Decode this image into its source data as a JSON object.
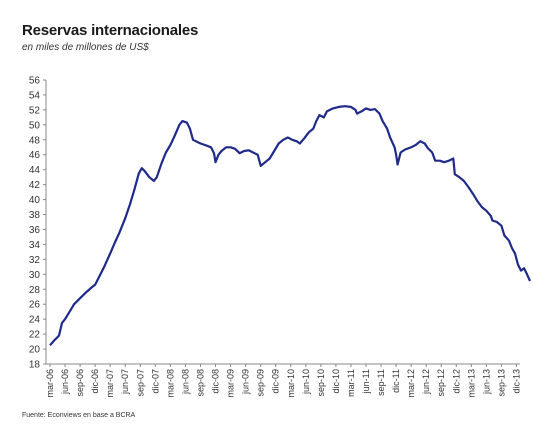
{
  "chart_data": {
    "type": "line",
    "title": "Reservas internacionales",
    "subtitle": "en miles de millones de US$",
    "source": "Fuente: Econviews en base a BCRA",
    "ylim": [
      18,
      56
    ],
    "yticks": [
      18,
      20,
      22,
      24,
      26,
      28,
      30,
      32,
      34,
      36,
      38,
      40,
      42,
      44,
      46,
      48,
      50,
      52,
      54,
      56
    ],
    "categories": [
      "mar-06",
      "jun-06",
      "sep-06",
      "dic-06",
      "mar-07",
      "jun-07",
      "sep-07",
      "dic-07",
      "mar-08",
      "jun-08",
      "sep-08",
      "dic-08",
      "mar-09",
      "jun-09",
      "sep-09",
      "dic-09",
      "mar-10",
      "jun-10",
      "sep-10",
      "dic-10",
      "mar-11",
      "jun-11",
      "sep-11",
      "dic-11",
      "mar-12",
      "jun-12",
      "sep-12",
      "dic-12",
      "mar-13",
      "jun-13",
      "sep-13",
      "dic-13"
    ],
    "grid": false,
    "line_color": "#1f2a8a",
    "series": [
      {
        "values": [
          [
            0,
            20.5
          ],
          [
            0.3,
            21.2
          ],
          [
            0.6,
            21.8
          ],
          [
            0.8,
            23.5
          ],
          [
            1.0,
            24.0
          ],
          [
            1.3,
            25.0
          ],
          [
            1.6,
            26.0
          ],
          [
            2.0,
            26.8
          ],
          [
            2.4,
            27.6
          ],
          [
            2.8,
            28.3
          ],
          [
            3.0,
            28.6
          ],
          [
            3.3,
            29.8
          ],
          [
            3.6,
            31.0
          ],
          [
            4.0,
            32.8
          ],
          [
            4.3,
            34.2
          ],
          [
            4.6,
            35.5
          ],
          [
            5.0,
            37.5
          ],
          [
            5.3,
            39.3
          ],
          [
            5.6,
            41.3
          ],
          [
            5.9,
            43.5
          ],
          [
            6.1,
            44.2
          ],
          [
            6.3,
            43.8
          ],
          [
            6.6,
            43.0
          ],
          [
            6.9,
            42.5
          ],
          [
            7.1,
            43.0
          ],
          [
            7.4,
            44.8
          ],
          [
            7.7,
            46.3
          ],
          [
            8.0,
            47.3
          ],
          [
            8.3,
            48.6
          ],
          [
            8.6,
            50.0
          ],
          [
            8.8,
            50.5
          ],
          [
            9.1,
            50.3
          ],
          [
            9.3,
            49.5
          ],
          [
            9.5,
            48.0
          ],
          [
            9.7,
            47.8
          ],
          [
            10.0,
            47.5
          ],
          [
            10.3,
            47.3
          ],
          [
            10.7,
            47.0
          ],
          [
            10.9,
            46.2
          ],
          [
            11.0,
            45.0
          ],
          [
            11.2,
            46.0
          ],
          [
            11.4,
            46.5
          ],
          [
            11.7,
            47.0
          ],
          [
            12.0,
            47.0
          ],
          [
            12.3,
            46.8
          ],
          [
            12.6,
            46.2
          ],
          [
            12.9,
            46.5
          ],
          [
            13.2,
            46.6
          ],
          [
            13.5,
            46.3
          ],
          [
            13.8,
            46.0
          ],
          [
            14.0,
            44.5
          ],
          [
            14.3,
            45.0
          ],
          [
            14.6,
            45.5
          ],
          [
            14.9,
            46.5
          ],
          [
            15.2,
            47.5
          ],
          [
            15.5,
            48.0
          ],
          [
            15.8,
            48.3
          ],
          [
            16.1,
            48.0
          ],
          [
            16.4,
            47.8
          ],
          [
            16.6,
            47.5
          ],
          [
            16.9,
            48.2
          ],
          [
            17.2,
            49.0
          ],
          [
            17.5,
            49.5
          ],
          [
            17.7,
            50.5
          ],
          [
            17.9,
            51.3
          ],
          [
            18.2,
            51.0
          ],
          [
            18.4,
            51.8
          ],
          [
            18.8,
            52.2
          ],
          [
            19.2,
            52.4
          ],
          [
            19.6,
            52.5
          ],
          [
            20.0,
            52.4
          ],
          [
            20.3,
            52.0
          ],
          [
            20.4,
            51.5
          ],
          [
            20.7,
            51.8
          ],
          [
            21.0,
            52.2
          ],
          [
            21.3,
            52.0
          ],
          [
            21.6,
            52.1
          ],
          [
            21.9,
            51.5
          ],
          [
            22.1,
            50.5
          ],
          [
            22.4,
            49.5
          ],
          [
            22.6,
            48.3
          ],
          [
            22.9,
            47.0
          ],
          [
            23.0,
            46.0
          ],
          [
            23.1,
            44.7
          ],
          [
            23.3,
            46.3
          ],
          [
            23.6,
            46.7
          ],
          [
            24.0,
            47.0
          ],
          [
            24.3,
            47.3
          ],
          [
            24.6,
            47.8
          ],
          [
            24.9,
            47.5
          ],
          [
            25.1,
            46.9
          ],
          [
            25.4,
            46.3
          ],
          [
            25.6,
            45.2
          ],
          [
            25.9,
            45.2
          ],
          [
            26.2,
            45.0
          ],
          [
            26.5,
            45.2
          ],
          [
            26.8,
            45.5
          ],
          [
            26.9,
            43.4
          ],
          [
            27.2,
            43.0
          ],
          [
            27.5,
            42.5
          ],
          [
            27.8,
            41.7
          ],
          [
            28.1,
            40.8
          ],
          [
            28.4,
            39.8
          ],
          [
            28.7,
            39.0
          ],
          [
            29.0,
            38.5
          ],
          [
            29.3,
            37.8
          ],
          [
            29.4,
            37.2
          ],
          [
            29.7,
            37.0
          ],
          [
            30.0,
            36.5
          ],
          [
            30.2,
            35.2
          ],
          [
            30.5,
            34.5
          ],
          [
            30.7,
            33.5
          ],
          [
            30.9,
            32.8
          ],
          [
            31.1,
            31.3
          ],
          [
            31.3,
            30.5
          ],
          [
            31.5,
            30.8
          ],
          [
            31.7,
            30.0
          ],
          [
            31.9,
            29.1
          ]
        ]
      }
    ]
  }
}
